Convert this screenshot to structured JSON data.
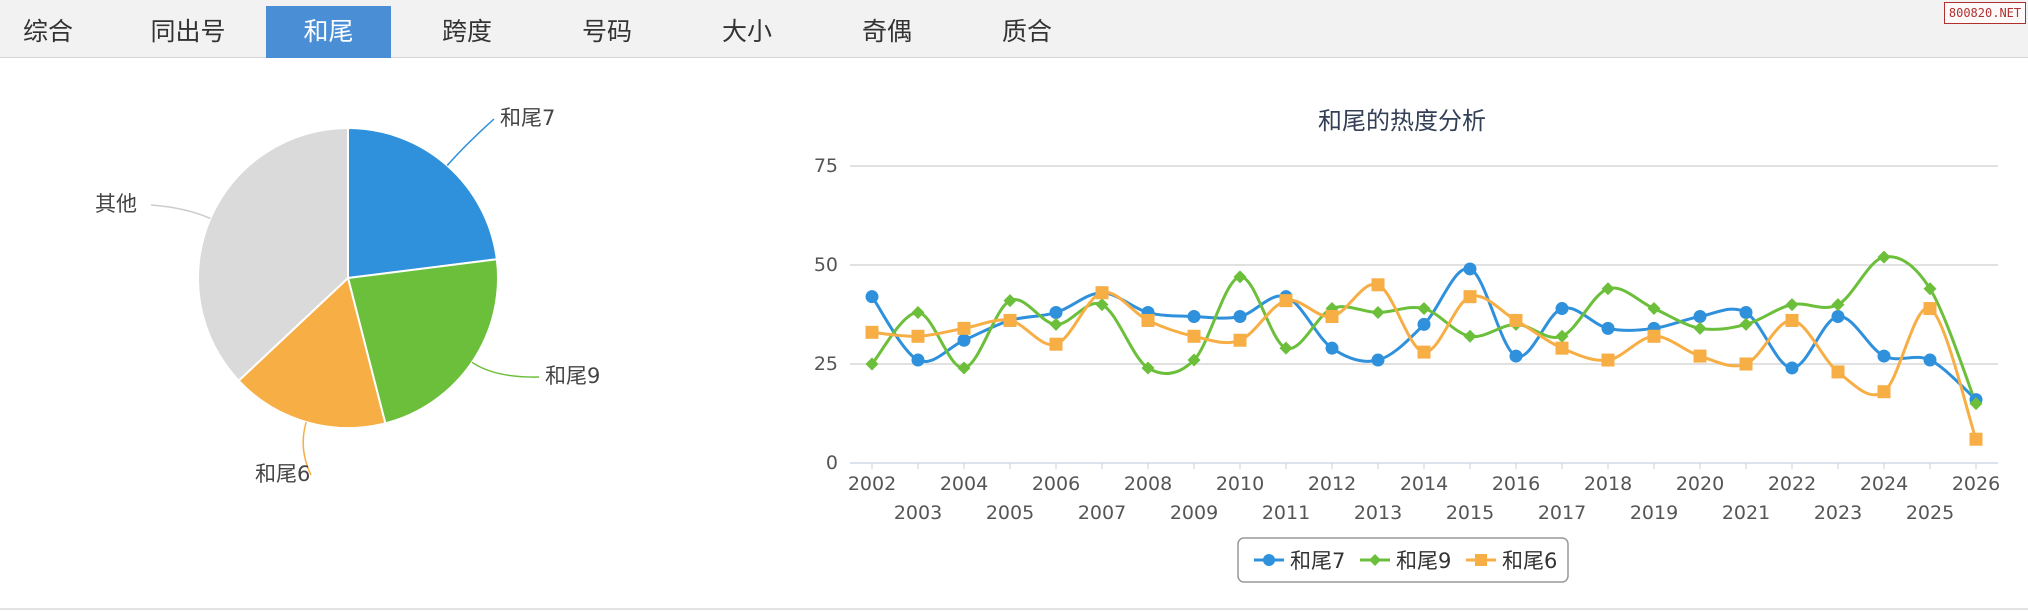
{
  "tabs": [
    {
      "label": "综合",
      "active": false
    },
    {
      "label": "同出号",
      "active": false
    },
    {
      "label": "和尾",
      "active": true
    },
    {
      "label": "跨度",
      "active": false
    },
    {
      "label": "号码",
      "active": false
    },
    {
      "label": "大小",
      "active": false
    },
    {
      "label": "奇偶",
      "active": false
    },
    {
      "label": "质合",
      "active": false
    }
  ],
  "watermark": "800820.NET",
  "chart_data": [
    {
      "type": "pie",
      "slices": [
        {
          "label": "和尾7",
          "value": 23,
          "color": "#2f90db"
        },
        {
          "label": "和尾9",
          "value": 23,
          "color": "#6cbf3b"
        },
        {
          "label": "和尾6",
          "value": 17,
          "color": "#f6ae45"
        },
        {
          "label": "其他",
          "value": 37,
          "color": "#dadada"
        }
      ]
    },
    {
      "type": "line",
      "title": "和尾的热度分析",
      "x": [
        "2002",
        "2003",
        "2004",
        "2005",
        "2006",
        "2007",
        "2008",
        "2009",
        "2010",
        "2011",
        "2012",
        "2013",
        "2014",
        "2015",
        "2016",
        "2017",
        "2018",
        "2019",
        "2020",
        "2021",
        "2022",
        "2023",
        "2024",
        "2025",
        "2026"
      ],
      "ylim": [
        0,
        75
      ],
      "yticks": [
        0,
        25,
        50,
        75
      ],
      "grid": true,
      "legend": "bottom-center",
      "series": [
        {
          "name": "和尾7",
          "color": "#2f90db",
          "marker": "circle",
          "values": [
            42,
            26,
            31,
            36,
            38,
            43,
            38,
            37,
            37,
            42,
            29,
            26,
            35,
            49,
            27,
            39,
            34,
            34,
            37,
            38,
            24,
            37,
            27,
            26,
            16
          ]
        },
        {
          "name": "和尾9",
          "color": "#6cbf3b",
          "marker": "diamond",
          "values": [
            25,
            38,
            24,
            41,
            35,
            40,
            24,
            26,
            47,
            29,
            39,
            38,
            39,
            32,
            35,
            32,
            44,
            39,
            34,
            35,
            40,
            40,
            52,
            44,
            15
          ]
        },
        {
          "name": "和尾6",
          "color": "#f6ae45",
          "marker": "square",
          "values": [
            33,
            32,
            34,
            36,
            30,
            43,
            36,
            32,
            31,
            41,
            37,
            45,
            28,
            42,
            36,
            29,
            26,
            32,
            27,
            25,
            36,
            23,
            18,
            39,
            6
          ]
        }
      ]
    }
  ]
}
